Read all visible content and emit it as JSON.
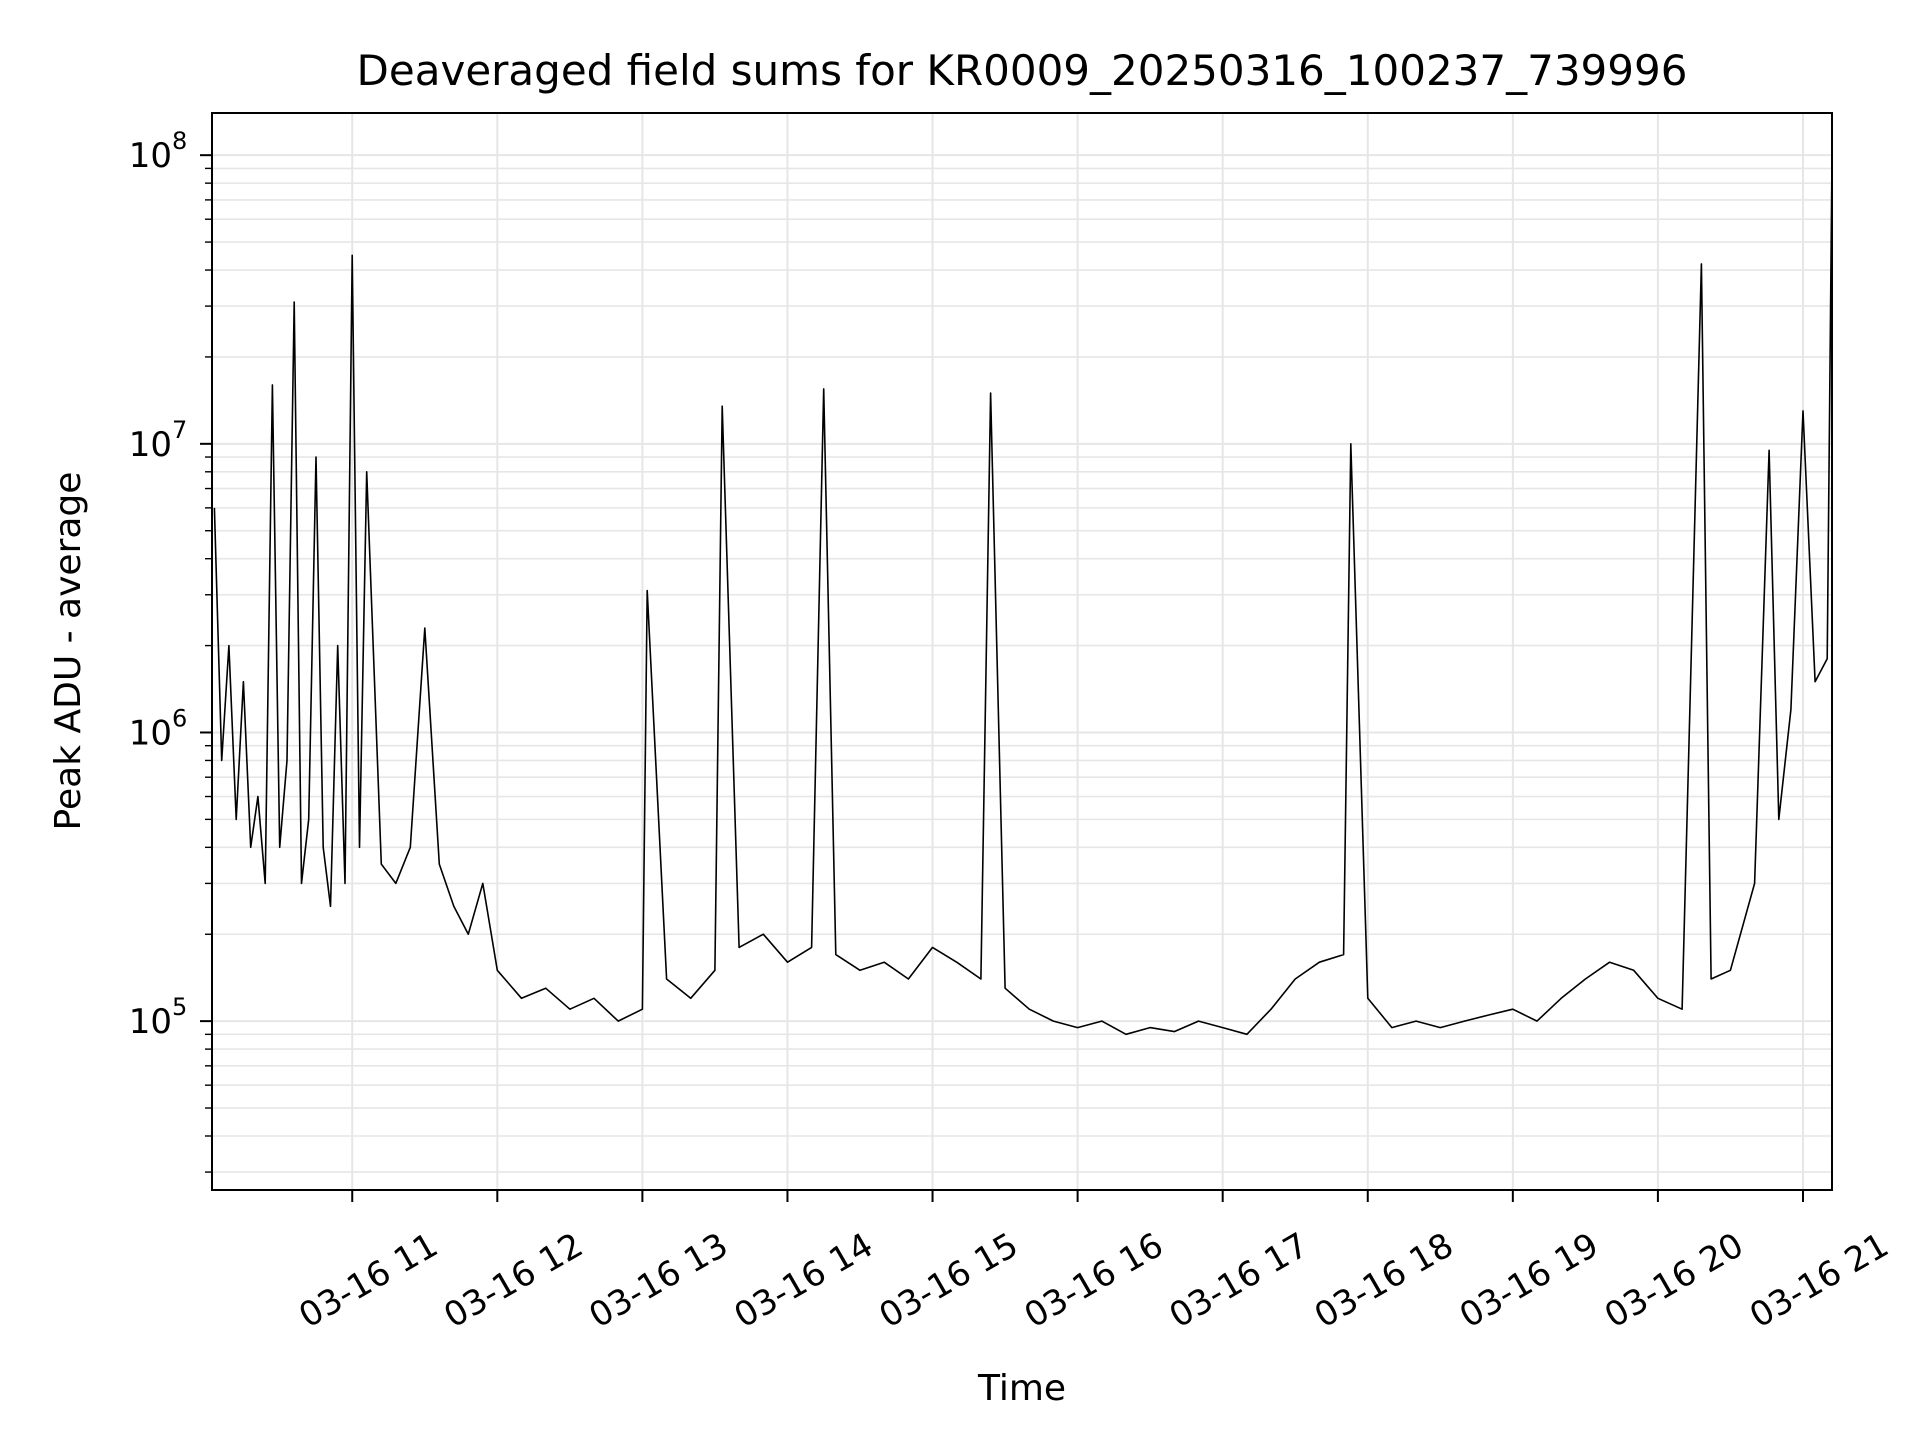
{
  "chart_data": {
    "type": "line",
    "title": "Deaveraged field sums for KR0009_20250316_100237_739996",
    "xlabel": "Time",
    "ylabel": "Peak ADU - average",
    "yscale": "log",
    "ylim": [
      26000,
      140000000
    ],
    "xlim": [
      "2025-03-16 10:02",
      "2025-03-16 21:12"
    ],
    "grid": true,
    "line_color": "#000000",
    "x_ticks": [
      {
        "label": "03-16 11",
        "value": "2025-03-16 11:00"
      },
      {
        "label": "03-16 12",
        "value": "2025-03-16 12:00"
      },
      {
        "label": "03-16 13",
        "value": "2025-03-16 13:00"
      },
      {
        "label": "03-16 14",
        "value": "2025-03-16 14:00"
      },
      {
        "label": "03-16 15",
        "value": "2025-03-16 15:00"
      },
      {
        "label": "03-16 16",
        "value": "2025-03-16 16:00"
      },
      {
        "label": "03-16 17",
        "value": "2025-03-16 17:00"
      },
      {
        "label": "03-16 18",
        "value": "2025-03-16 18:00"
      },
      {
        "label": "03-16 19",
        "value": "2025-03-16 19:00"
      },
      {
        "label": "03-16 20",
        "value": "2025-03-16 20:00"
      },
      {
        "label": "03-16 21",
        "value": "2025-03-16 21:00"
      }
    ],
    "y_ticks": [
      {
        "base": "10",
        "exp": "5",
        "value": 100000
      },
      {
        "base": "10",
        "exp": "6",
        "value": 1000000
      },
      {
        "base": "10",
        "exp": "7",
        "value": 10000000
      },
      {
        "base": "10",
        "exp": "8",
        "value": 100000000
      }
    ],
    "series": [
      {
        "x": [
          "2025-03-16 10:03",
          "2025-03-16 10:06",
          "2025-03-16 10:09",
          "2025-03-16 10:12",
          "2025-03-16 10:15",
          "2025-03-16 10:18",
          "2025-03-16 10:21",
          "2025-03-16 10:24",
          "2025-03-16 10:27",
          "2025-03-16 10:30",
          "2025-03-16 10:33",
          "2025-03-16 10:36",
          "2025-03-16 10:39",
          "2025-03-16 10:42",
          "2025-03-16 10:45",
          "2025-03-16 10:48",
          "2025-03-16 10:51",
          "2025-03-16 10:54",
          "2025-03-16 10:57",
          "2025-03-16 11:00",
          "2025-03-16 11:03",
          "2025-03-16 11:06",
          "2025-03-16 11:12",
          "2025-03-16 11:18",
          "2025-03-16 11:24",
          "2025-03-16 11:30",
          "2025-03-16 11:36",
          "2025-03-16 11:42",
          "2025-03-16 11:48",
          "2025-03-16 11:54",
          "2025-03-16 12:00",
          "2025-03-16 12:10",
          "2025-03-16 12:20",
          "2025-03-16 12:30",
          "2025-03-16 12:40",
          "2025-03-16 12:50",
          "2025-03-16 13:00",
          "2025-03-16 13:02",
          "2025-03-16 13:10",
          "2025-03-16 13:20",
          "2025-03-16 13:30",
          "2025-03-16 13:33",
          "2025-03-16 13:40",
          "2025-03-16 13:50",
          "2025-03-16 14:00",
          "2025-03-16 14:10",
          "2025-03-16 14:15",
          "2025-03-16 14:20",
          "2025-03-16 14:30",
          "2025-03-16 14:40",
          "2025-03-16 14:50",
          "2025-03-16 15:00",
          "2025-03-16 15:10",
          "2025-03-16 15:20",
          "2025-03-16 15:24",
          "2025-03-16 15:30",
          "2025-03-16 15:40",
          "2025-03-16 15:50",
          "2025-03-16 16:00",
          "2025-03-16 16:10",
          "2025-03-16 16:20",
          "2025-03-16 16:30",
          "2025-03-16 16:40",
          "2025-03-16 16:50",
          "2025-03-16 17:00",
          "2025-03-16 17:10",
          "2025-03-16 17:20",
          "2025-03-16 17:30",
          "2025-03-16 17:40",
          "2025-03-16 17:50",
          "2025-03-16 17:53",
          "2025-03-16 18:00",
          "2025-03-16 18:10",
          "2025-03-16 18:20",
          "2025-03-16 18:30",
          "2025-03-16 18:40",
          "2025-03-16 18:50",
          "2025-03-16 19:00",
          "2025-03-16 19:10",
          "2025-03-16 19:20",
          "2025-03-16 19:30",
          "2025-03-16 19:40",
          "2025-03-16 19:50",
          "2025-03-16 20:00",
          "2025-03-16 20:10",
          "2025-03-16 20:18",
          "2025-03-16 20:22",
          "2025-03-16 20:30",
          "2025-03-16 20:40",
          "2025-03-16 20:46",
          "2025-03-16 20:50",
          "2025-03-16 20:55",
          "2025-03-16 21:00",
          "2025-03-16 21:05",
          "2025-03-16 21:10",
          "2025-03-16 21:12"
        ],
        "y": [
          6000000,
          800000,
          2000000,
          500000,
          1500000,
          400000,
          600000,
          300000,
          16000000,
          400000,
          800000,
          31000000,
          300000,
          500000,
          9000000,
          400000,
          250000,
          2000000,
          300000,
          45000000,
          400000,
          8000000,
          350000,
          300000,
          400000,
          2300000,
          350000,
          250000,
          200000,
          300000,
          150000,
          120000,
          130000,
          110000,
          120000,
          100000,
          110000,
          3100000,
          140000,
          120000,
          150000,
          13500000,
          180000,
          200000,
          160000,
          180000,
          15500000,
          170000,
          150000,
          160000,
          140000,
          180000,
          160000,
          140000,
          15000000,
          130000,
          110000,
          100000,
          95000,
          100000,
          90000,
          95000,
          92000,
          100000,
          95000,
          90000,
          110000,
          140000,
          160000,
          170000,
          10000000,
          120000,
          95000,
          100000,
          95000,
          100000,
          105000,
          110000,
          100000,
          120000,
          140000,
          160000,
          150000,
          120000,
          110000,
          42000000,
          140000,
          150000,
          300000,
          9500000,
          500000,
          1200000,
          13000000,
          1500000,
          1800000,
          98000000
        ]
      }
    ]
  }
}
